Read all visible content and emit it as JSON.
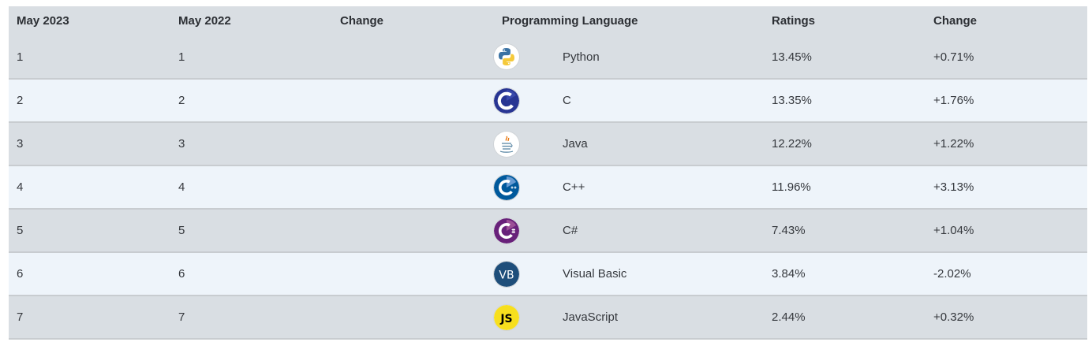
{
  "table": {
    "headers": [
      "May 2023",
      "May 2022",
      "Change",
      "Programming Language",
      "Ratings",
      "Change"
    ],
    "rows": [
      {
        "rank_now": "1",
        "rank_prev": "1",
        "change_arrow": "",
        "icon": "python-icon",
        "language": "Python",
        "rating": "13.45%",
        "change": "+0.71%"
      },
      {
        "rank_now": "2",
        "rank_prev": "2",
        "change_arrow": "",
        "icon": "c-icon",
        "language": "C",
        "rating": "13.35%",
        "change": "+1.76%"
      },
      {
        "rank_now": "3",
        "rank_prev": "3",
        "change_arrow": "",
        "icon": "java-icon",
        "language": "Java",
        "rating": "12.22%",
        "change": "+1.22%"
      },
      {
        "rank_now": "4",
        "rank_prev": "4",
        "change_arrow": "",
        "icon": "cplusplus-icon",
        "language": "C++",
        "rating": "11.96%",
        "change": "+3.13%"
      },
      {
        "rank_now": "5",
        "rank_prev": "5",
        "change_arrow": "",
        "icon": "csharp-icon",
        "language": "C#",
        "rating": "7.43%",
        "change": "+1.04%"
      },
      {
        "rank_now": "6",
        "rank_prev": "6",
        "change_arrow": "",
        "icon": "visual-basic-icon",
        "language": "Visual Basic",
        "rating": "3.84%",
        "change": "-2.02%"
      },
      {
        "rank_now": "7",
        "rank_prev": "7",
        "change_arrow": "",
        "icon": "javascript-icon",
        "language": "JavaScript",
        "rating": "2.44%",
        "change": "+0.32%"
      }
    ]
  },
  "colors": {
    "header_bg": "#d9dee3",
    "row_odd_bg": "#d9dee3",
    "row_even_bg": "#eef4fa",
    "row_border": "#c8ccd0",
    "text": "#35383d"
  }
}
